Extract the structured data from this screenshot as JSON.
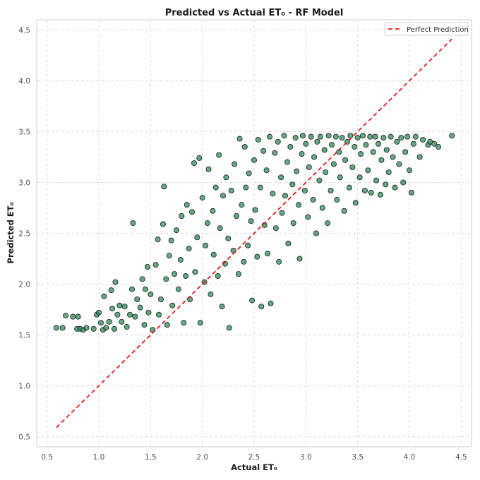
{
  "chart_data": {
    "type": "scatter",
    "title": "Predicted vs Actual ET₀ - RF Model",
    "xlabel": "Actual ET₀",
    "ylabel": "Predicted ET₀",
    "xlim": [
      0.4,
      4.6
    ],
    "ylim": [
      0.4,
      4.6
    ],
    "xticks": [
      0.5,
      1.0,
      1.5,
      2.0,
      2.5,
      3.0,
      3.5,
      4.0,
      4.5
    ],
    "yticks": [
      0.5,
      1.0,
      1.5,
      2.0,
      2.5,
      3.0,
      3.5,
      4.0,
      4.5
    ],
    "xtick_labels": [
      "0.5",
      "1.0",
      "1.5",
      "2.0",
      "2.5",
      "3.0",
      "3.5",
      "4.0",
      "4.5"
    ],
    "ytick_labels": [
      "0.5",
      "1.0",
      "1.5",
      "2.0",
      "2.5",
      "3.0",
      "3.5",
      "4.0",
      "4.5"
    ],
    "grid": true,
    "legend_position": "top-right",
    "legend": [
      {
        "label": "Perfect Prediction",
        "style": "dashed",
        "color": "#e31a1c"
      }
    ],
    "perfect_line": {
      "x": [
        0.59,
        4.41
      ],
      "y": [
        0.59,
        4.41
      ]
    },
    "point_color": "#2e8b57",
    "point_edge": "#1a1a1a",
    "series": [
      {
        "values": [
          [
            0.59,
            1.57
          ],
          [
            0.65,
            1.57
          ],
          [
            0.68,
            1.69
          ],
          [
            0.75,
            1.68
          ],
          [
            0.79,
            1.56
          ],
          [
            0.8,
            1.68
          ],
          [
            0.82,
            1.56
          ],
          [
            0.85,
            1.55
          ],
          [
            0.88,
            1.57
          ],
          [
            0.95,
            1.56
          ],
          [
            0.98,
            1.7
          ],
          [
            1.0,
            1.72
          ],
          [
            1.02,
            1.62
          ],
          [
            1.04,
            1.55
          ],
          [
            1.05,
            1.88
          ],
          [
            1.07,
            1.57
          ],
          [
            1.1,
            1.63
          ],
          [
            1.12,
            1.94
          ],
          [
            1.13,
            1.76
          ],
          [
            1.15,
            1.56
          ],
          [
            1.16,
            2.02
          ],
          [
            1.18,
            1.7
          ],
          [
            1.2,
            1.79
          ],
          [
            1.22,
            1.63
          ],
          [
            1.25,
            1.78
          ],
          [
            1.27,
            1.58
          ],
          [
            1.3,
            1.7
          ],
          [
            1.32,
            1.95
          ],
          [
            1.33,
            2.6
          ],
          [
            1.35,
            1.68
          ],
          [
            1.37,
            1.85
          ],
          [
            1.4,
            1.77
          ],
          [
            1.42,
            2.05
          ],
          [
            1.44,
            1.6
          ],
          [
            1.45,
            1.95
          ],
          [
            1.47,
            2.17
          ],
          [
            1.48,
            1.72
          ],
          [
            1.5,
            1.9
          ],
          [
            1.52,
            1.55
          ],
          [
            1.55,
            2.19
          ],
          [
            1.57,
            2.44
          ],
          [
            1.58,
            1.7
          ],
          [
            1.6,
            1.85
          ],
          [
            1.62,
            2.59
          ],
          [
            1.63,
            2.96
          ],
          [
            1.65,
            2.05
          ],
          [
            1.66,
            1.6
          ],
          [
            1.68,
            2.28
          ],
          [
            1.7,
            2.43
          ],
          [
            1.71,
            1.79
          ],
          [
            1.73,
            2.1
          ],
          [
            1.75,
            2.53
          ],
          [
            1.77,
            1.95
          ],
          [
            1.79,
            2.24
          ],
          [
            1.8,
            2.67
          ],
          [
            1.82,
            1.62
          ],
          [
            1.84,
            2.08
          ],
          [
            1.85,
            2.78
          ],
          [
            1.87,
            2.35
          ],
          [
            1.88,
            1.85
          ],
          [
            1.9,
            2.71
          ],
          [
            1.92,
            3.19
          ],
          [
            1.93,
            2.12
          ],
          [
            1.95,
            2.46
          ],
          [
            1.97,
            3.24
          ],
          [
            1.98,
            1.62
          ],
          [
            2.0,
            2.85
          ],
          [
            2.02,
            2.02
          ],
          [
            2.03,
            2.38
          ],
          [
            2.05,
            2.6
          ],
          [
            2.06,
            3.13
          ],
          [
            2.08,
            1.9
          ],
          [
            2.1,
            2.72
          ],
          [
            2.11,
            2.29
          ],
          [
            2.13,
            2.95
          ],
          [
            2.15,
            2.08
          ],
          [
            2.16,
            3.27
          ],
          [
            2.17,
            2.55
          ],
          [
            2.19,
            1.78
          ],
          [
            2.2,
            2.87
          ],
          [
            2.22,
            2.2
          ],
          [
            2.23,
            3.05
          ],
          [
            2.25,
            2.45
          ],
          [
            2.26,
            1.57
          ],
          [
            2.28,
            2.92
          ],
          [
            2.3,
            2.33
          ],
          [
            2.31,
            3.18
          ],
          [
            2.33,
            2.67
          ],
          [
            2.35,
            2.1
          ],
          [
            2.36,
            3.43
          ],
          [
            2.38,
            2.78
          ],
          [
            2.4,
            2.22
          ],
          [
            2.41,
            3.35
          ],
          [
            2.42,
            2.95
          ],
          [
            2.44,
            2.38
          ],
          [
            2.45,
            3.09
          ],
          [
            2.47,
            2.62
          ],
          [
            2.48,
            1.84
          ],
          [
            2.5,
            3.22
          ],
          [
            2.51,
            2.73
          ],
          [
            2.53,
            2.27
          ],
          [
            2.54,
            3.42
          ],
          [
            2.56,
            2.95
          ],
          [
            2.57,
            1.78
          ],
          [
            2.59,
            3.31
          ],
          [
            2.6,
            2.58
          ],
          [
            2.62,
            3.12
          ],
          [
            2.63,
            2.3
          ],
          [
            2.65,
            3.45
          ],
          [
            2.66,
            1.81
          ],
          [
            2.68,
            2.89
          ],
          [
            2.7,
            3.29
          ],
          [
            2.71,
            2.55
          ],
          [
            2.73,
            3.4
          ],
          [
            2.74,
            2.22
          ],
          [
            2.76,
            3.05
          ],
          [
            2.77,
            2.7
          ],
          [
            2.79,
            3.46
          ],
          [
            2.8,
            2.87
          ],
          [
            2.82,
            3.2
          ],
          [
            2.83,
            2.4
          ],
          [
            2.85,
            3.35
          ],
          [
            2.87,
            2.98
          ],
          [
            2.88,
            2.6
          ],
          [
            2.9,
            3.44
          ],
          [
            2.91,
            3.11
          ],
          [
            2.93,
            2.78
          ],
          [
            2.94,
            2.25
          ],
          [
            2.96,
            3.28
          ],
          [
            2.97,
            3.46
          ],
          [
            2.99,
            2.92
          ],
          [
            3.0,
            3.38
          ],
          [
            3.02,
            2.66
          ],
          [
            3.03,
            3.15
          ],
          [
            3.05,
            3.45
          ],
          [
            3.07,
            2.83
          ],
          [
            3.08,
            3.25
          ],
          [
            3.1,
            2.5
          ],
          [
            3.11,
            3.4
          ],
          [
            3.13,
            3.02
          ],
          [
            3.14,
            3.45
          ],
          [
            3.16,
            2.75
          ],
          [
            3.18,
            3.32
          ],
          [
            3.19,
            3.1
          ],
          [
            3.21,
            2.6
          ],
          [
            3.22,
            3.46
          ],
          [
            3.24,
            2.92
          ],
          [
            3.25,
            3.37
          ],
          [
            3.27,
            3.18
          ],
          [
            3.29,
            3.45
          ],
          [
            3.3,
            2.83
          ],
          [
            3.32,
            3.3
          ],
          [
            3.33,
            3.05
          ],
          [
            3.35,
            3.44
          ],
          [
            3.37,
            2.72
          ],
          [
            3.38,
            3.22
          ],
          [
            3.4,
            3.4
          ],
          [
            3.42,
            2.95
          ],
          [
            3.43,
            3.46
          ],
          [
            3.45,
            3.15
          ],
          [
            3.47,
            3.35
          ],
          [
            3.48,
            2.8
          ],
          [
            3.5,
            3.44
          ],
          [
            3.52,
            3.05
          ],
          [
            3.53,
            3.28
          ],
          [
            3.55,
            3.46
          ],
          [
            3.57,
            2.92
          ],
          [
            3.58,
            3.37
          ],
          [
            3.6,
            3.12
          ],
          [
            3.62,
            3.45
          ],
          [
            3.63,
            2.9
          ],
          [
            3.65,
            3.3
          ],
          [
            3.67,
            3.45
          ],
          [
            3.68,
            3.02
          ],
          [
            3.7,
            3.38
          ],
          [
            3.72,
            2.88
          ],
          [
            3.73,
            3.22
          ],
          [
            3.75,
            3.44
          ],
          [
            3.77,
            2.98
          ],
          [
            3.78,
            3.32
          ],
          [
            3.8,
            3.1
          ],
          [
            3.82,
            3.45
          ],
          [
            3.84,
            3.25
          ],
          [
            3.86,
            2.95
          ],
          [
            3.88,
            3.4
          ],
          [
            3.9,
            3.18
          ],
          [
            3.92,
            3.44
          ],
          [
            3.94,
            3.0
          ],
          [
            3.96,
            3.3
          ],
          [
            3.98,
            3.45
          ],
          [
            4.0,
            3.12
          ],
          [
            4.02,
            2.9
          ],
          [
            4.04,
            3.38
          ],
          [
            4.06,
            3.45
          ],
          [
            4.1,
            3.25
          ],
          [
            4.13,
            3.42
          ],
          [
            4.18,
            3.37
          ],
          [
            4.2,
            3.4
          ],
          [
            4.24,
            3.38
          ],
          [
            4.28,
            3.35
          ],
          [
            4.41,
            3.46
          ]
        ]
      }
    ]
  }
}
